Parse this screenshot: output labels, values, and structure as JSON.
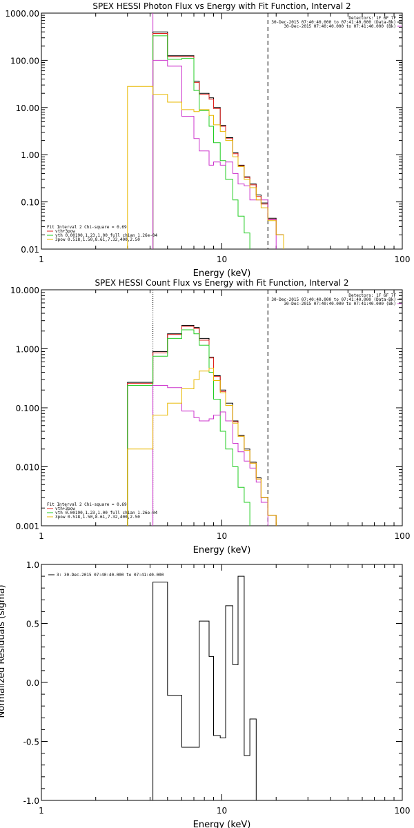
{
  "chart_data": [
    {
      "type": "line",
      "subtype": "histogram-step",
      "title": "SPEX HESSI Photon Flux vs Energy with Fit Function, Interval 2",
      "xlabel": "Energy (keV)",
      "ylabel": "",
      "xscale": "log",
      "yscale": "log",
      "xlim": [
        1,
        100
      ],
      "ylim": [
        0.01,
        1000
      ],
      "x_tick_labels": [
        "1",
        "10",
        "100"
      ],
      "y_tick_labels": [
        "0.01",
        "0.10",
        "1.00",
        "10.00",
        "100.00",
        "1000.00"
      ],
      "vlines": [
        {
          "x": 4.15,
          "style": "solid",
          "color": "#cc33cc"
        },
        {
          "x": 18.0,
          "style": "dashed",
          "color": "#000000"
        }
      ],
      "top_right_text": [
        "Detectors: 1F 6F 7F",
        "30-Dec-2015 07:40:40.000 to 07:41:40.000 (Data-Bk)",
        "30-Dec-2015 07:40:40.000 to 07:41:40.000 (Bk)"
      ],
      "legend_title": "Fit Interval 2   Chi-square = 0.69",
      "legend_position": "bottom-left",
      "bin_edges": [
        3,
        4.15,
        5,
        6,
        7,
        7.5,
        8.5,
        9,
        9.8,
        10.5,
        11.5,
        12.3,
        13.3,
        14.3,
        15.5,
        16.5,
        18,
        20,
        22
      ],
      "series": [
        {
          "name": "",
          "color": "#000000",
          "values": [
            null,
            400,
            125,
            125,
            36,
            20,
            16,
            10,
            4.2,
            2.3,
            1.1,
            0.6,
            0.34,
            0.24,
            0.14,
            0.095,
            0.045,
            0.02
          ]
        },
        {
          "name": "vth+3pow",
          "color": "#e0201c",
          "values": [
            null,
            370,
            120,
            120,
            34,
            19,
            15,
            9.5,
            4.0,
            2.2,
            1.05,
            0.58,
            0.33,
            0.23,
            0.13,
            0.09,
            0.043,
            0.02
          ]
        },
        {
          "name": "vth 0.00190,1.23,1.00  full chian 1.26e-04",
          "color": "#22cc22",
          "values": [
            null,
            330,
            105,
            110,
            23,
            8.6,
            4.0,
            1.8,
            0.75,
            0.3,
            0.11,
            0.05,
            0.022,
            null,
            null,
            null,
            null,
            null
          ]
        },
        {
          "name": "",
          "color": "#cc33cc",
          "values": [
            null,
            100,
            75,
            6.5,
            2.2,
            1.2,
            0.6,
            0.7,
            0.6,
            0.7,
            0.4,
            0.24,
            0.22,
            0.11,
            0.11,
            0.11,
            0.042,
            null
          ]
        },
        {
          "name": "3pow 0.518,1.50,8.61,7.32,400,2.50",
          "color": "#e8b800",
          "values": [
            28,
            19,
            13,
            9,
            8.2,
            9.0,
            6.8,
            4.3,
            3.1,
            2.0,
            0.9,
            0.56,
            0.3,
            0.2,
            0.11,
            0.075,
            0.04,
            0.02
          ]
        }
      ]
    },
    {
      "type": "line",
      "subtype": "histogram-step",
      "title": "SPEX HESSI Count Flux vs Energy with Fit Function, Interval 2",
      "xlabel": "Energy (keV)",
      "ylabel": "",
      "xscale": "log",
      "yscale": "log",
      "xlim": [
        1,
        100
      ],
      "ylim": [
        0.001,
        10
      ],
      "x_tick_labels": [
        "1",
        "10",
        "100"
      ],
      "y_tick_labels": [
        "0.001",
        "0.010",
        "0.100",
        "1.000",
        "10.000"
      ],
      "vlines": [
        {
          "x": 4.15,
          "style": "dotted",
          "color": "#000000"
        },
        {
          "x": 18.0,
          "style": "dashed",
          "color": "#000000"
        }
      ],
      "top_right_text": [
        "Detectors: 1F 6F 7F",
        "30-Dec-2015 07:40:40.000 to 07:41:40.000 (Data-Bk)",
        "30-Dec-2015 07:40:40.000 to 07:41:40.000 (Bk)"
      ],
      "legend_title": "Fit Interval 2   Chi-square = 0.69",
      "legend_position": "bottom-left",
      "bin_edges": [
        3,
        4.15,
        5,
        6,
        7,
        7.5,
        8.5,
        9,
        9.8,
        10.5,
        11.5,
        12.3,
        13.3,
        14.3,
        15.5,
        16.5,
        18,
        20,
        22
      ],
      "series": [
        {
          "name": "",
          "color": "#000000",
          "values": [
            0.27,
            0.9,
            1.8,
            2.5,
            2.3,
            1.5,
            0.72,
            0.35,
            0.2,
            0.12,
            0.06,
            0.034,
            0.02,
            0.012,
            0.0065,
            0.003,
            0.0015,
            null
          ]
        },
        {
          "name": "vth+3pow",
          "color": "#e0201c",
          "values": [
            0.26,
            0.85,
            1.75,
            2.4,
            2.2,
            1.4,
            0.7,
            0.34,
            0.19,
            0.11,
            0.058,
            0.033,
            0.019,
            0.0115,
            0.0062,
            0.003,
            0.0015,
            null
          ]
        },
        {
          "name": "vth 0.00190,1.23,1.00  full chian 1.26e-04",
          "color": "#22cc22",
          "values": [
            0.24,
            0.75,
            1.5,
            2.1,
            1.8,
            1.15,
            0.4,
            0.14,
            0.04,
            0.02,
            0.01,
            0.0045,
            0.0025,
            null,
            null,
            null,
            null,
            null
          ]
        },
        {
          "name": "",
          "color": "#cc33cc",
          "values": [
            null,
            0.24,
            0.22,
            0.088,
            0.068,
            0.06,
            0.065,
            0.075,
            0.085,
            0.06,
            0.025,
            0.018,
            0.0125,
            0.0095,
            0.0055,
            0.0025,
            null,
            null
          ]
        },
        {
          "name": "3pow 0.518,1.50,8.61,7.32,400,2.50",
          "color": "#e8b800",
          "values": [
            0.02,
            0.075,
            0.12,
            0.21,
            0.3,
            0.42,
            0.47,
            0.29,
            0.18,
            0.11,
            0.055,
            0.033,
            0.019,
            0.0115,
            0.0062,
            0.003,
            0.0015,
            null
          ]
        }
      ]
    },
    {
      "type": "line",
      "subtype": "histogram-step",
      "title": "",
      "xlabel": "Energy (keV)",
      "ylabel": "Normalized Residuals (sigma)",
      "xscale": "log",
      "yscale": "linear",
      "xlim": [
        1,
        100
      ],
      "ylim": [
        -1.0,
        1.0
      ],
      "x_tick_labels": [
        "1",
        "10",
        "100"
      ],
      "y_tick_labels": [
        "-1.0",
        "-0.5",
        "0.0",
        "0.5",
        "1.0"
      ],
      "legend_position": "top-left",
      "bin_edges": [
        4.15,
        5,
        6,
        7,
        7.5,
        8.5,
        9,
        9.8,
        10.5,
        11.5,
        12.3,
        13.3,
        14.3,
        15.5,
        16.5,
        18
      ],
      "series": [
        {
          "name": "3: 30-Dec-2015 07:40:40.000 to 07:41:40.000",
          "color": "#000000",
          "values": [
            0.85,
            -0.11,
            -0.55,
            -0.55,
            0.52,
            0.22,
            -0.45,
            -0.47,
            0.65,
            0.15,
            0.9,
            -0.62,
            -0.31,
            null,
            null
          ]
        }
      ]
    }
  ]
}
